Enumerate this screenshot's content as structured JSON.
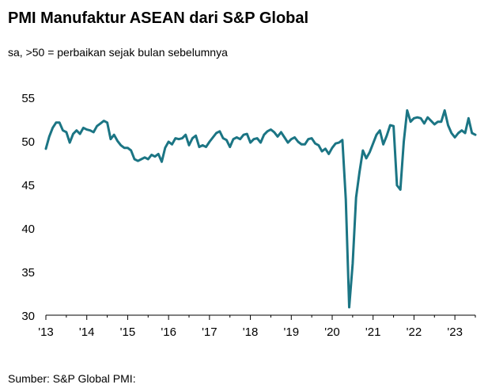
{
  "header": {
    "title": "PMI Manufaktur ASEAN dari S&P Global",
    "subtitle": "sa, >50 = perbaikan sejak bulan sebelumnya"
  },
  "footer": {
    "source": "Sumber: S&P Global PMI:"
  },
  "colors": {
    "line": "#1b7584",
    "axis": "#000000",
    "background": "#ffffff"
  },
  "chart_data": {
    "type": "line",
    "title": "PMI Manufaktur ASEAN dari S&P Global",
    "subtitle": "sa, >50 = perbaikan sejak bulan sebelumnya",
    "xlabel": "",
    "ylabel": "",
    "ylim": [
      30,
      55
    ],
    "yticks": [
      30,
      35,
      40,
      45,
      50,
      55
    ],
    "ytick_labels": [
      "30",
      "35",
      "40",
      "45",
      "50",
      "55"
    ],
    "xlim": [
      "2013-01",
      "2023-07"
    ],
    "xtick_labels": [
      "'13",
      "'14",
      "'15",
      "'16",
      "'17",
      "'18",
      "'19",
      "'20",
      "'21",
      "'22",
      "'23"
    ],
    "xtick_positions": [
      "2013-01",
      "2014-01",
      "2015-01",
      "2016-01",
      "2017-01",
      "2018-01",
      "2019-01",
      "2020-01",
      "2021-01",
      "2022-01",
      "2023-01"
    ],
    "grid": false,
    "legend": "none",
    "series": [
      {
        "x": [
          "2013-01",
          "2013-02",
          "2013-03",
          "2013-04",
          "2013-05",
          "2013-06",
          "2013-07",
          "2013-08",
          "2013-09",
          "2013-10",
          "2013-11",
          "2013-12",
          "2014-01",
          "2014-02",
          "2014-03",
          "2014-04",
          "2014-05",
          "2014-06",
          "2014-07",
          "2014-08",
          "2014-09",
          "2014-10",
          "2014-11",
          "2014-12",
          "2015-01",
          "2015-02",
          "2015-03",
          "2015-04",
          "2015-05",
          "2015-06",
          "2015-07",
          "2015-08",
          "2015-09",
          "2015-10",
          "2015-11",
          "2015-12",
          "2016-01",
          "2016-02",
          "2016-03",
          "2016-04",
          "2016-05",
          "2016-06",
          "2016-07",
          "2016-08",
          "2016-09",
          "2016-10",
          "2016-11",
          "2016-12",
          "2017-01",
          "2017-02",
          "2017-03",
          "2017-04",
          "2017-05",
          "2017-06",
          "2017-07",
          "2017-08",
          "2017-09",
          "2017-10",
          "2017-11",
          "2017-12",
          "2018-01",
          "2018-02",
          "2018-03",
          "2018-04",
          "2018-05",
          "2018-06",
          "2018-07",
          "2018-08",
          "2018-09",
          "2018-10",
          "2018-11",
          "2018-12",
          "2019-01",
          "2019-02",
          "2019-03",
          "2019-04",
          "2019-05",
          "2019-06",
          "2019-07",
          "2019-08",
          "2019-09",
          "2019-10",
          "2019-11",
          "2019-12",
          "2020-01",
          "2020-02",
          "2020-03",
          "2020-04",
          "2020-05",
          "2020-06",
          "2020-07",
          "2020-08",
          "2020-09",
          "2020-10",
          "2020-11",
          "2020-12",
          "2021-01",
          "2021-02",
          "2021-03",
          "2021-04",
          "2021-05",
          "2021-06",
          "2021-07",
          "2021-08",
          "2021-09",
          "2021-10",
          "2021-11",
          "2021-12",
          "2022-01",
          "2022-02",
          "2022-03",
          "2022-04",
          "2022-05",
          "2022-06",
          "2022-07",
          "2022-08",
          "2022-09",
          "2022-10",
          "2022-11",
          "2022-12",
          "2023-01",
          "2023-02",
          "2023-03",
          "2023-04",
          "2023-05",
          "2023-06",
          "2023-07"
        ],
        "values": [
          49.2,
          50.6,
          51.6,
          52.2,
          52.2,
          51.3,
          51.1,
          49.9,
          50.9,
          51.3,
          50.9,
          51.6,
          51.4,
          51.3,
          51.1,
          51.8,
          52.1,
          52.4,
          52.2,
          50.3,
          50.8,
          50.1,
          49.6,
          49.3,
          49.3,
          49.0,
          48.0,
          47.8,
          48.0,
          48.2,
          48.0,
          48.5,
          48.3,
          48.6,
          47.7,
          49.3,
          50.0,
          49.7,
          50.4,
          50.3,
          50.4,
          50.8,
          49.6,
          50.4,
          50.7,
          49.4,
          49.6,
          49.4,
          50.0,
          50.5,
          51.0,
          51.2,
          50.4,
          50.2,
          49.4,
          50.3,
          50.5,
          50.3,
          50.8,
          50.9,
          49.9,
          50.3,
          50.4,
          49.9,
          50.8,
          51.2,
          51.4,
          51.1,
          50.6,
          51.1,
          50.5,
          49.9,
          50.3,
          50.5,
          50.0,
          49.7,
          49.7,
          50.3,
          50.4,
          49.8,
          49.6,
          48.9,
          49.2,
          48.6,
          49.3,
          49.8,
          49.9,
          50.2,
          43.4,
          31.0,
          36.0,
          43.6,
          46.5,
          49.0,
          48.1,
          48.8,
          49.8,
          50.8,
          51.3,
          49.7,
          50.7,
          51.9,
          51.8,
          45.0,
          44.5,
          50.0,
          53.6,
          52.3,
          52.7,
          52.8,
          52.7,
          52.1,
          52.8,
          52.4,
          52.0,
          52.3,
          52.3,
          53.6,
          51.9,
          51.0,
          50.5,
          51.0,
          51.3,
          51.0,
          52.7,
          51.0,
          50.8
        ]
      }
    ]
  }
}
